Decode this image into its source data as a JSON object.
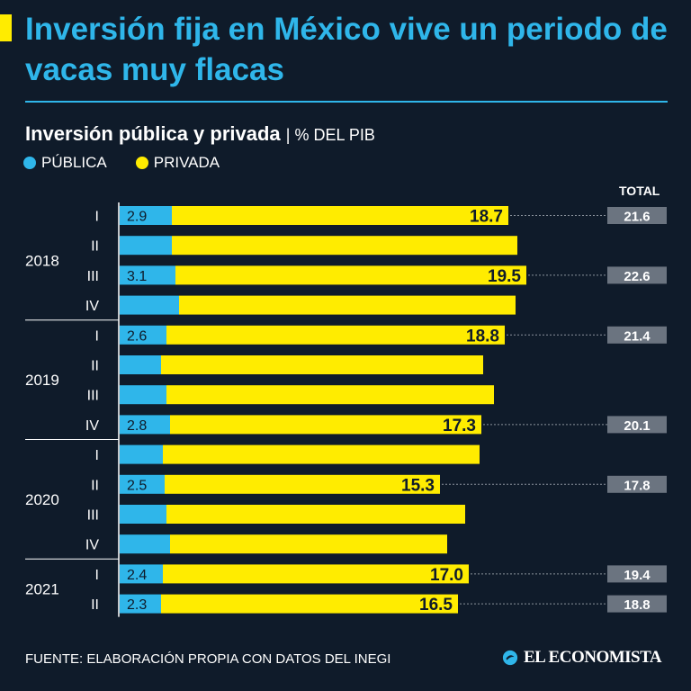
{
  "header": {
    "title": "Inversión fija en México vive un periodo de vacas muy flacas",
    "subtitle": "Inversión pública y privada",
    "unit": "| % DEL PIB"
  },
  "legend": {
    "publica": "PÚBLICA",
    "privada": "PRIVADA"
  },
  "colors": {
    "publica": "#2fb6ea",
    "privada": "#ffec00",
    "background": "#0f1b2a",
    "total_badge": "#6b7480"
  },
  "total_header": "TOTAL",
  "footer": {
    "source": "FUENTE: ELABORACIÓN PROPIA CON DATOS DEL INEGI",
    "logo": "EL ECONOMISTA"
  },
  "chart_data": {
    "type": "bar",
    "orientation": "horizontal",
    "stacked": true,
    "title": "Inversión pública y privada",
    "unit": "% DEL PIB",
    "categories": [
      "2018 I",
      "2018 II",
      "2018 III",
      "2018 IV",
      "2019 I",
      "2019 II",
      "2019 III",
      "2019 IV",
      "2020 I",
      "2020 II",
      "2020 III",
      "2020 IV",
      "2021 I",
      "2021 II"
    ],
    "groups": [
      {
        "year": "2018",
        "quarters": [
          "I",
          "II",
          "III",
          "IV"
        ]
      },
      {
        "year": "2019",
        "quarters": [
          "I",
          "II",
          "III",
          "IV"
        ]
      },
      {
        "year": "2020",
        "quarters": [
          "I",
          "II",
          "III",
          "IV"
        ]
      },
      {
        "year": "2021",
        "quarters": [
          "I",
          "II"
        ]
      }
    ],
    "series": [
      {
        "name": "PÚBLICA",
        "values": [
          2.9,
          2.9,
          3.1,
          3.3,
          2.6,
          2.3,
          2.6,
          2.8,
          2.4,
          2.5,
          2.6,
          2.8,
          2.4,
          2.3
        ]
      },
      {
        "name": "PRIVADA",
        "values": [
          18.7,
          19.2,
          19.5,
          18.7,
          18.8,
          17.9,
          18.2,
          17.3,
          17.6,
          15.3,
          16.6,
          15.4,
          17.0,
          16.5
        ]
      }
    ],
    "labels": [
      {
        "index": 0,
        "publica": "2.9",
        "privada": "18.7",
        "total": "21.6"
      },
      {
        "index": 2,
        "publica": "3.1",
        "privada": "19.5",
        "total": "22.6"
      },
      {
        "index": 4,
        "publica": "2.6",
        "privada": "18.8",
        "total": "21.4"
      },
      {
        "index": 7,
        "publica": "2.8",
        "privada": "17.3",
        "total": "20.1"
      },
      {
        "index": 9,
        "publica": "2.5",
        "privada": "15.3",
        "total": "17.8"
      },
      {
        "index": 12,
        "publica": "2.4",
        "privada": "17.0",
        "total": "19.4"
      },
      {
        "index": 13,
        "publica": "2.3",
        "privada": "16.5",
        "total": "18.8"
      }
    ],
    "xlim": [
      0,
      23
    ]
  }
}
